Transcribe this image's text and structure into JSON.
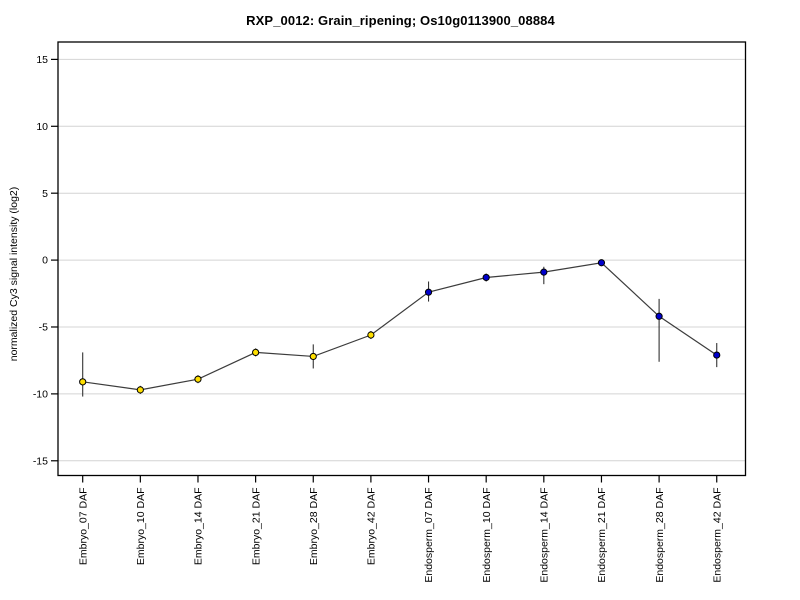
{
  "window": {
    "background": "#ffffff"
  },
  "chart_data": {
    "type": "line",
    "title": "RXP_0012: Grain_ripening; Os10g0113900_08884",
    "ylabel": "normalized Cy3 signal intensity (log2)",
    "xlabel": "",
    "categories": [
      "Embryo_07 DAF",
      "Embryo_10 DAF",
      "Embryo_14 DAF",
      "Embryo_21 DAF",
      "Embryo_28 DAF",
      "Embryo_42 DAF",
      "Endosperm_07 DAF",
      "Endosperm_10 DAF",
      "Endosperm_14 DAF",
      "Endosperm_21 DAF",
      "Endosperm_28 DAF",
      "Endosperm_42 DAF"
    ],
    "series": [
      {
        "name": "Os10g0113900_08884",
        "values": [
          -9.1,
          -9.7,
          -8.9,
          -6.9,
          -7.2,
          -5.6,
          -2.4,
          -1.3,
          -0.9,
          -0.2,
          -4.2,
          -7.1
        ],
        "error_high": [
          -6.9,
          -9.4,
          -8.6,
          -6.6,
          -6.3,
          -5.3,
          -1.6,
          -1.0,
          -0.5,
          0.0,
          -2.9,
          -6.2
        ],
        "error_low": [
          -10.2,
          -10.0,
          -9.2,
          -7.2,
          -8.1,
          -5.9,
          -3.1,
          -1.6,
          -1.8,
          -0.4,
          -7.6,
          -8.0
        ],
        "point_colors": [
          "#ffdf00",
          "#ffdf00",
          "#ffdf00",
          "#ffdf00",
          "#ffdf00",
          "#ffdf00",
          "#0000cd",
          "#0000cd",
          "#0000cd",
          "#0000cd",
          "#0000cd",
          "#0000cd"
        ]
      }
    ],
    "yticks": [
      15,
      10,
      5,
      0,
      -5,
      -10,
      -15
    ],
    "ylim": [
      -16.1,
      16.3
    ],
    "grid": true,
    "legend_position": "none",
    "colors": {
      "line": "#3c3c3c",
      "error_bar": "#333333",
      "grid": "#d4d4d4",
      "box": "#000000",
      "tick": "#000000",
      "point_stroke": "#000000",
      "embryo_point": "#ffdf00",
      "endosperm_point": "#0000cd",
      "text": "#000000"
    }
  }
}
